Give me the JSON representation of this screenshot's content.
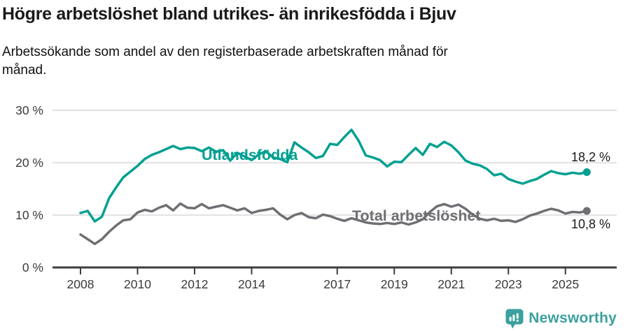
{
  "header": {
    "title": "Högre arbetslöshet bland utrikes- än inrikesfödda i Bjuv",
    "subtitle": "Arbetssökande som andel av den registerbaserade arbetskraften månad för månad."
  },
  "chart_data": {
    "type": "line",
    "title": "Högre arbetslöshet bland utrikes- än inrikesfödda i Bjuv",
    "subtitle": "Arbetssökande som andel av den registerbaserade arbetskraften månad för månad.",
    "unit": "%",
    "grid": "horizontal",
    "legend_position": "inline-labels",
    "x_start": 2008.0,
    "x_step": 0.25,
    "xlim": [
      2007.0,
      2026.8
    ],
    "ylim": [
      0,
      30
    ],
    "ytick_values": [
      0,
      10,
      20,
      30
    ],
    "ytick_labels": [
      "0 %",
      "10 %",
      "20 %",
      "30 %"
    ],
    "xtick_values": [
      2008,
      2010,
      2012,
      2014,
      2017,
      2019,
      2021,
      2023,
      2025
    ],
    "xtick_labels": [
      "2008",
      "2010",
      "2012",
      "2014",
      "2017",
      "2019",
      "2021",
      "2023",
      "2025"
    ],
    "series": [
      {
        "name": "Utlandsfödda",
        "color": "#00a091",
        "end_value_label": "18,2 %",
        "values": [
          10.4,
          10.8,
          8.8,
          9.7,
          13.2,
          15.3,
          17.2,
          18.3,
          19.4,
          20.7,
          21.5,
          22.0,
          22.6,
          23.2,
          22.6,
          22.9,
          22.8,
          22.2,
          22.9,
          22.1,
          22.4,
          20.4,
          21.9,
          21.2,
          20.5,
          21.6,
          22.2,
          21.0,
          20.7,
          20.1,
          23.9,
          22.9,
          22.0,
          20.9,
          21.3,
          23.6,
          23.4,
          24.9,
          26.3,
          24.2,
          21.4,
          21.0,
          20.5,
          19.3,
          20.2,
          20.1,
          21.5,
          22.8,
          21.5,
          23.6,
          23.0,
          24.0,
          23.3,
          22.0,
          20.4,
          19.8,
          19.5,
          18.8,
          17.6,
          17.9,
          16.9,
          16.4,
          16.0,
          16.5,
          16.9,
          17.7,
          18.4,
          18.0,
          17.8,
          18.1,
          17.9,
          18.2
        ]
      },
      {
        "name": "Total arbetslöshet",
        "color": "#6e6e73",
        "end_value_label": "10,8 %",
        "values": [
          6.3,
          5.4,
          4.5,
          5.4,
          6.8,
          8.0,
          9.0,
          9.2,
          10.5,
          11.0,
          10.7,
          11.4,
          11.9,
          10.9,
          12.2,
          11.4,
          11.3,
          12.1,
          11.3,
          11.6,
          11.9,
          11.4,
          10.9,
          11.3,
          10.4,
          10.8,
          11.0,
          11.3,
          10.1,
          9.2,
          10.0,
          10.4,
          9.6,
          9.4,
          10.1,
          9.8,
          9.3,
          8.9,
          9.4,
          9.0,
          8.6,
          8.4,
          8.3,
          8.5,
          8.3,
          8.6,
          8.2,
          8.6,
          9.2,
          10.6,
          11.7,
          12.1,
          11.6,
          12.0,
          11.2,
          10.1,
          9.3,
          9.0,
          9.3,
          8.9,
          9.0,
          8.7,
          9.2,
          9.9,
          10.3,
          10.8,
          11.2,
          10.9,
          10.3,
          10.6,
          10.5,
          10.8
        ]
      }
    ]
  },
  "footer": {
    "brand": "Newsworthy"
  },
  "colors": {
    "accent_teal": "#00a091",
    "line_gray": "#6e6e73",
    "gridline": "#d9d9d9",
    "axis": "#3c3c41",
    "brand_teal": "#3ba09e"
  }
}
